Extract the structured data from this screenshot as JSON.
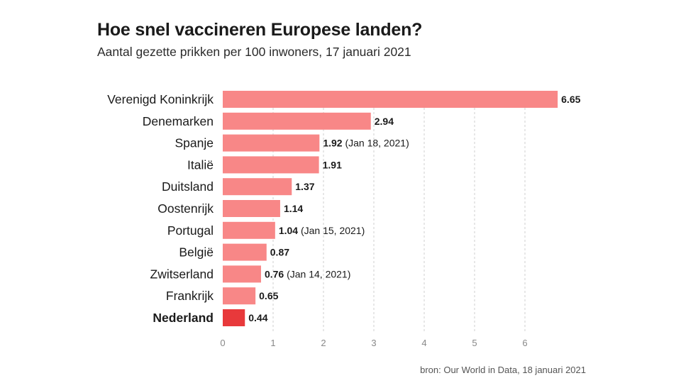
{
  "title": "Hoe snel vaccineren Europese landen?",
  "subtitle": "Aantal gezette prikken per 100 inwoners, 17 januari 2021",
  "source": "bron: Our World in Data, 18 januari 2021",
  "colors": {
    "bar": "#f88787",
    "highlight": "#e8393b",
    "grid": "#cfcfcf",
    "axis_text": "#888888"
  },
  "chart_data": {
    "type": "bar",
    "orientation": "horizontal",
    "title": "Hoe snel vaccineren Europese landen?",
    "subtitle": "Aantal gezette prikken per 100 inwoners, 17 januari 2021",
    "xlabel": "",
    "ylabel": "",
    "xlim": [
      0,
      6.65
    ],
    "xticks": [
      0,
      1,
      2,
      3,
      4,
      5,
      6
    ],
    "grid": "vertical dashed",
    "highlight": "Nederland",
    "categories": [
      "Verenigd Koninkrijk",
      "Denemarken",
      "Spanje",
      "Italië",
      "Duitsland",
      "Oostenrijk",
      "Portugal",
      "België",
      "Zwitserland",
      "Frankrijk",
      "Nederland"
    ],
    "values": [
      6.65,
      2.94,
      1.92,
      1.91,
      1.37,
      1.14,
      1.04,
      0.87,
      0.76,
      0.65,
      0.44
    ],
    "value_labels": [
      "6.65",
      "2.94",
      "1.92",
      "1.91",
      "1.37",
      "1.14",
      "1.04",
      "0.87",
      "0.76",
      "0.65",
      "0.44"
    ],
    "date_notes": [
      "",
      "",
      "(Jan 18, 2021)",
      "",
      "",
      "",
      "(Jan 15, 2021)",
      "",
      "(Jan 14, 2021)",
      "",
      ""
    ]
  }
}
